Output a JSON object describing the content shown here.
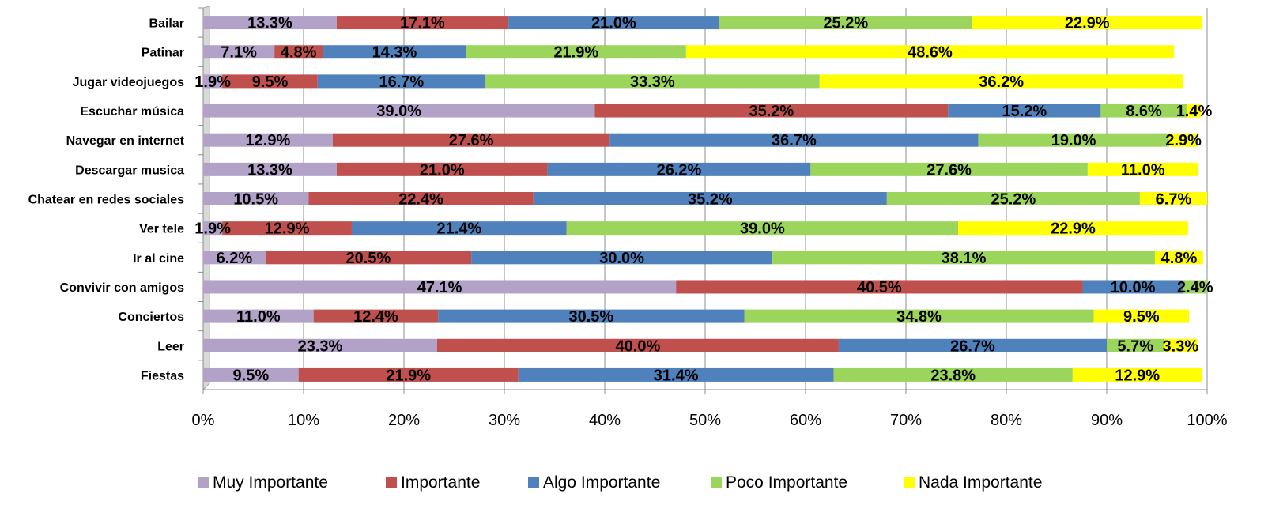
{
  "chart_data": {
    "type": "bar",
    "orientation": "horizontal",
    "stacked": "percent",
    "grid": true,
    "legend_position": "bottom",
    "xlim": [
      0,
      100
    ],
    "x_ticks": [
      "0%",
      "10%",
      "20%",
      "30%",
      "40%",
      "50%",
      "60%",
      "70%",
      "80%",
      "90%",
      "100%"
    ],
    "categories": [
      "Bailar",
      "Patinar",
      "Jugar videojuegos",
      "Escuchar música",
      "Navegar en internet",
      "Descargar musica",
      "Chatear en redes sociales",
      "Ver tele",
      "Ir al cine",
      "Convivir con amigos",
      "Conciertos",
      "Leer",
      "Fiestas"
    ],
    "series": [
      {
        "name": "Muy Importante",
        "color": "#b3a2c7",
        "values": [
          13.3,
          7.1,
          1.9,
          39.0,
          12.9,
          13.3,
          10.5,
          1.9,
          6.2,
          47.1,
          11.0,
          23.3,
          9.5
        ],
        "labels": [
          "13.3%",
          "7.1%",
          "1.9%",
          "39.0%",
          "12.9%",
          "13.3%",
          "10.5%",
          "1.9%",
          "6.2%",
          "47.1%",
          "11.0%",
          "23.3%",
          "9.5%"
        ]
      },
      {
        "name": "Importante",
        "color": "#c0504d",
        "values": [
          17.1,
          4.8,
          9.5,
          35.2,
          27.6,
          21.0,
          22.4,
          12.9,
          20.5,
          40.5,
          12.4,
          40.0,
          21.9
        ],
        "labels": [
          "17.1%",
          "4.8%",
          "9.5%",
          "35.2%",
          "27.6%",
          "21.0%",
          "22.4%",
          "12.9%",
          "20.5%",
          "40.5%",
          "12.4%",
          "40.0%",
          "21.9%"
        ]
      },
      {
        "name": "Algo Importante",
        "color": "#4f81bd",
        "values": [
          21.0,
          14.3,
          16.7,
          15.2,
          36.7,
          26.2,
          35.2,
          21.4,
          30.0,
          10.0,
          30.5,
          26.7,
          31.4
        ],
        "labels": [
          "21.0%",
          "14.3%",
          "16.7%",
          "15.2%",
          "36.7%",
          "26.2%",
          "35.2%",
          "21.4%",
          "30.0%",
          "10.0%",
          "30.5%",
          "26.7%",
          "31.4%"
        ]
      },
      {
        "name": "Poco Importante",
        "color": "#9bd55b",
        "values": [
          25.2,
          21.9,
          33.3,
          8.6,
          19.0,
          27.6,
          25.2,
          39.0,
          38.1,
          2.4,
          34.8,
          5.7,
          23.8
        ],
        "labels": [
          "25.2%",
          "21.9%",
          "33.3%",
          "8.6%",
          "19.0%",
          "27.6%",
          "25.2%",
          "39.0%",
          "38.1%",
          "2.4%",
          "34.8%",
          "5.7%",
          "23.8%"
        ]
      },
      {
        "name": "Nada Importante",
        "color": "#ffff00",
        "values": [
          22.9,
          48.6,
          36.2,
          1.4,
          2.9,
          11.0,
          6.7,
          22.9,
          4.8,
          0.0,
          9.5,
          3.3,
          12.9
        ],
        "labels": [
          "22.9%",
          "48.6%",
          "36.2%",
          "1.4%",
          "2.9%",
          "11.0%",
          "6.7%",
          "22.9%",
          "4.8%",
          "",
          "9.5%",
          "3.3%",
          "12.9%"
        ]
      }
    ]
  }
}
